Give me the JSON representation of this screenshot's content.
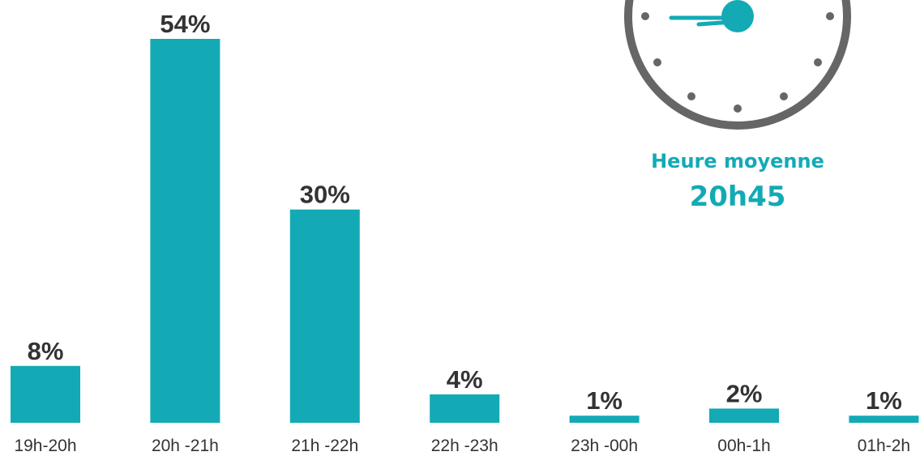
{
  "chart_data": {
    "type": "bar",
    "categories": [
      "19h-20h",
      "20h -21h",
      "21h -22h",
      "22h -23h",
      "23h -00h",
      "00h-1h",
      "01h-2h"
    ],
    "values": [
      8,
      54,
      30,
      4,
      1,
      2,
      1
    ],
    "value_labels": [
      "8%",
      "54%",
      "30%",
      "4%",
      "1%",
      "2%",
      "1%"
    ],
    "color": "#13aab5",
    "annotations": [
      "Heure moyenne",
      "20h45"
    ]
  }
}
